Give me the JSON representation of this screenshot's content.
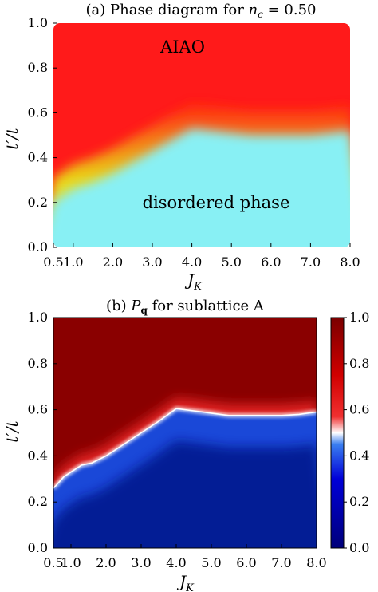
{
  "figure": {
    "panel_a": {
      "title_prefix": "(a) Phase diagram for ",
      "title_var": "n",
      "title_sub": "c",
      "title_suffix": " = 0.50"
    },
    "panel_b": {
      "title_prefix": "(b) ",
      "title_var": "P",
      "title_sub": "q",
      "title_suffix": " for sublattice A"
    },
    "xlabel_var": "J",
    "xlabel_sub": "K",
    "ylabel_var": "t",
    "ylabel_rest": "′/t"
  },
  "chart_data": [
    {
      "type": "heatmap",
      "title": "(a) Phase diagram for n_c = 0.50",
      "xlabel": "J_K",
      "ylabel": "t'/t",
      "x_ticks": [
        "0.5",
        "1.0",
        "2.0",
        "3.0",
        "4.0",
        "5.0",
        "6.0",
        "7.0",
        "8.0"
      ],
      "x_tick_values": [
        0.5,
        1.0,
        2.0,
        3.0,
        4.0,
        5.0,
        6.0,
        7.0,
        8.0
      ],
      "y_ticks": [
        "0.0",
        "0.2",
        "0.4",
        "0.6",
        "0.8",
        "1.0"
      ],
      "y_tick_values": [
        0.0,
        0.2,
        0.4,
        0.6,
        0.8,
        1.0
      ],
      "xlim": [
        0.5,
        8.0
      ],
      "ylim": [
        0.0,
        1.0
      ],
      "annotations": [
        "AIAO",
        "disordered phase"
      ],
      "phase_boundary": {
        "x": [
          0.5,
          1.0,
          1.5,
          2.0,
          2.5,
          3.0,
          3.5,
          4.0,
          4.5,
          5.0,
          5.5,
          6.0,
          6.5,
          7.0,
          7.5,
          8.0
        ],
        "y": [
          0.27,
          0.33,
          0.36,
          0.4,
          0.45,
          0.5,
          0.55,
          0.6,
          0.59,
          0.58,
          0.57,
          0.57,
          0.57,
          0.57,
          0.58,
          0.59
        ]
      },
      "colors": {
        "aiao": "#ff1a1a",
        "disordered": "#88f0f4",
        "crossover": "#e8e600"
      }
    },
    {
      "type": "heatmap",
      "title": "(b) P_q for sublattice A",
      "xlabel": "J_K",
      "ylabel": "t'/t",
      "x_ticks": [
        "0.5",
        "1.0",
        "2.0",
        "3.0",
        "4.0",
        "5.0",
        "6.0",
        "7.0",
        "8.0"
      ],
      "x_tick_values": [
        0.5,
        1.0,
        2.0,
        3.0,
        4.0,
        5.0,
        6.0,
        7.0,
        8.0
      ],
      "y_ticks": [
        "0.0",
        "0.2",
        "0.4",
        "0.6",
        "0.8",
        "1.0"
      ],
      "y_tick_values": [
        0.0,
        0.2,
        0.4,
        0.6,
        0.8,
        1.0
      ],
      "xlim": [
        0.5,
        8.0
      ],
      "ylim": [
        0.0,
        1.0
      ],
      "boundary": {
        "x": [
          0.5,
          0.8,
          1.0,
          1.3,
          1.6,
          2.0,
          2.5,
          3.0,
          3.5,
          4.0,
          4.5,
          5.0,
          5.5,
          6.0,
          6.5,
          7.0,
          7.5,
          8.0
        ],
        "y": [
          0.26,
          0.31,
          0.33,
          0.36,
          0.37,
          0.4,
          0.45,
          0.5,
          0.55,
          0.605,
          0.595,
          0.585,
          0.575,
          0.575,
          0.575,
          0.575,
          0.58,
          0.59
        ]
      },
      "above_value": 1.0,
      "below_value": 0.15,
      "colorbar": {
        "ticks": [
          "0.0",
          "0.2",
          "0.4",
          "0.6",
          "0.8",
          "1.0"
        ],
        "tick_values": [
          0.0,
          0.2,
          0.4,
          0.6,
          0.8,
          1.0
        ],
        "range": [
          0.0,
          1.0
        ],
        "colors": [
          "#00007a",
          "#0000d8",
          "#3a7ef0",
          "#ffffff",
          "#f03030",
          "#d00000",
          "#7a0000"
        ]
      }
    }
  ]
}
